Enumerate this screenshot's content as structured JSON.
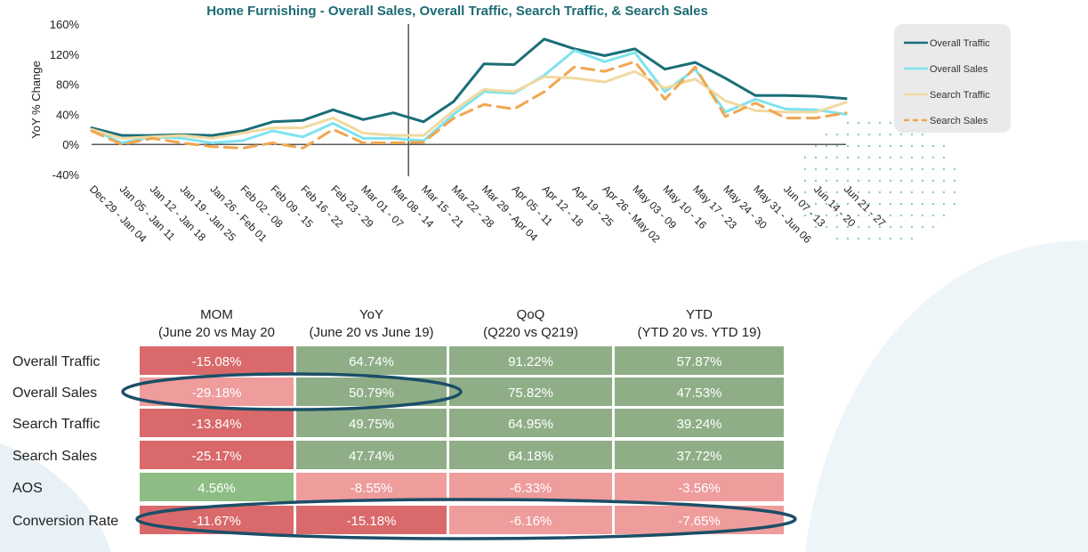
{
  "chart_data": {
    "type": "line",
    "title": "Home Furnishing - Overall Sales, Overall Traffic, Search Traffic, & Search Sales",
    "ylabel": "YoY % Change",
    "xlabel": "",
    "ylim": [
      -40,
      160
    ],
    "yticks": [
      -40,
      0,
      40,
      80,
      120,
      160
    ],
    "ytick_labels": [
      "-40%",
      "0%",
      "40%",
      "80%",
      "120%",
      "160%"
    ],
    "legend_position": "right",
    "divider_after_category": "Mar 08 - 14",
    "categories": [
      "Dec 29 - Jan 04",
      "Jan 05 - Jan 11",
      "Jan 12 - Jan 18",
      "Jan 19 - Jan 25",
      "Jan 26 - Feb 01",
      "Feb 02 - 08",
      "Feb 09 - 15",
      "Feb 16 - 22",
      "Feb 23 - 29",
      "Mar 01 - 07",
      "Mar 08 - 14",
      "Mar 15 - 21",
      "Mar 22 - 28",
      "Mar 29 - Apr 04",
      "Apr 05 - 11",
      "Apr 12 - 18",
      "Apr 19 - 25",
      "Apr 26 - May 02",
      "May 03 - 09",
      "May 10 - 16",
      "May 17 - 23",
      "May 24 - 30",
      "May 31 - Jun 06",
      "Jun 07 - 13",
      "Jun 14 - 20",
      "Jun 21 - 27"
    ],
    "series": [
      {
        "name": "Overall Traffic",
        "color": "#1a6e78",
        "style": "solid",
        "values": [
          22,
          12,
          12,
          13,
          12,
          18,
          30,
          32,
          46,
          33,
          42,
          30,
          57,
          107,
          106,
          140,
          127,
          118,
          127,
          100,
          109,
          88,
          65,
          65,
          64,
          61
        ]
      },
      {
        "name": "Overall Sales",
        "color": "#7fe3ef",
        "style": "solid",
        "values": [
          20,
          2,
          10,
          8,
          2,
          5,
          18,
          10,
          28,
          8,
          8,
          5,
          40,
          70,
          68,
          92,
          125,
          110,
          122,
          70,
          100,
          43,
          60,
          47,
          46,
          40
        ]
      },
      {
        "name": "Search Traffic",
        "color": "#f1d9a0",
        "style": "solid",
        "values": [
          20,
          8,
          10,
          12,
          8,
          15,
          22,
          22,
          35,
          15,
          12,
          12,
          45,
          73,
          70,
          90,
          88,
          83,
          97,
          75,
          87,
          58,
          45,
          43,
          43,
          56
        ]
      },
      {
        "name": "Search Sales",
        "color": "#f0a650",
        "style": "dashed",
        "values": [
          18,
          0,
          8,
          2,
          -3,
          -5,
          2,
          -5,
          20,
          2,
          2,
          3,
          35,
          53,
          47,
          70,
          103,
          97,
          110,
          60,
          103,
          37,
          55,
          35,
          35,
          42
        ]
      }
    ]
  },
  "table": {
    "columns": [
      {
        "title": "MOM",
        "subtitle": "(June 20 vs May 20"
      },
      {
        "title": "YoY",
        "subtitle": "(June 20 vs June 19)"
      },
      {
        "title": "QoQ",
        "subtitle": "(Q220 vs Q219)"
      },
      {
        "title": "YTD",
        "subtitle": "(YTD 20 vs. YTD 19)"
      }
    ],
    "rows": [
      {
        "label": "Overall Traffic",
        "cells": [
          {
            "text": "-15.08%",
            "color": "#d9696a"
          },
          {
            "text": "64.74%",
            "color": "#8fae87"
          },
          {
            "text": "91.22%",
            "color": "#8fae87"
          },
          {
            "text": "57.87%",
            "color": "#8fae87"
          }
        ]
      },
      {
        "label": "Overall Sales",
        "cells": [
          {
            "text": "-29.18%",
            "color": "#ee9c9c"
          },
          {
            "text": "50.79%",
            "color": "#8fae87"
          },
          {
            "text": "75.82%",
            "color": "#8fae87"
          },
          {
            "text": "47.53%",
            "color": "#8fae87"
          }
        ]
      },
      {
        "label": "Search Traffic",
        "cells": [
          {
            "text": "-13.84%",
            "color": "#d9696a"
          },
          {
            "text": "49.75%",
            "color": "#8fae87"
          },
          {
            "text": "64.95%",
            "color": "#8fae87"
          },
          {
            "text": "39.24%",
            "color": "#8fae87"
          }
        ]
      },
      {
        "label": "Search Sales",
        "cells": [
          {
            "text": "-25.17%",
            "color": "#d9696a"
          },
          {
            "text": "47.74%",
            "color": "#8fae87"
          },
          {
            "text": "64.18%",
            "color": "#8fae87"
          },
          {
            "text": "37.72%",
            "color": "#8fae87"
          }
        ]
      },
      {
        "label": "AOS",
        "cells": [
          {
            "text": "4.56%",
            "color": "#8dbd84"
          },
          {
            "text": "-8.55%",
            "color": "#ee9c9c"
          },
          {
            "text": "-6.33%",
            "color": "#ee9c9c"
          },
          {
            "text": "-3.56%",
            "color": "#ee9c9c"
          }
        ]
      },
      {
        "label": "Conversion Rate",
        "cells": [
          {
            "text": "-11.67%",
            "color": "#d9696a"
          },
          {
            "text": "-15.18%",
            "color": "#d9696a"
          },
          {
            "text": "-6.16%",
            "color": "#ee9c9c"
          },
          {
            "text": "-7.65%",
            "color": "#ee9c9c"
          }
        ]
      }
    ],
    "highlight_color": "#1b4e68"
  }
}
